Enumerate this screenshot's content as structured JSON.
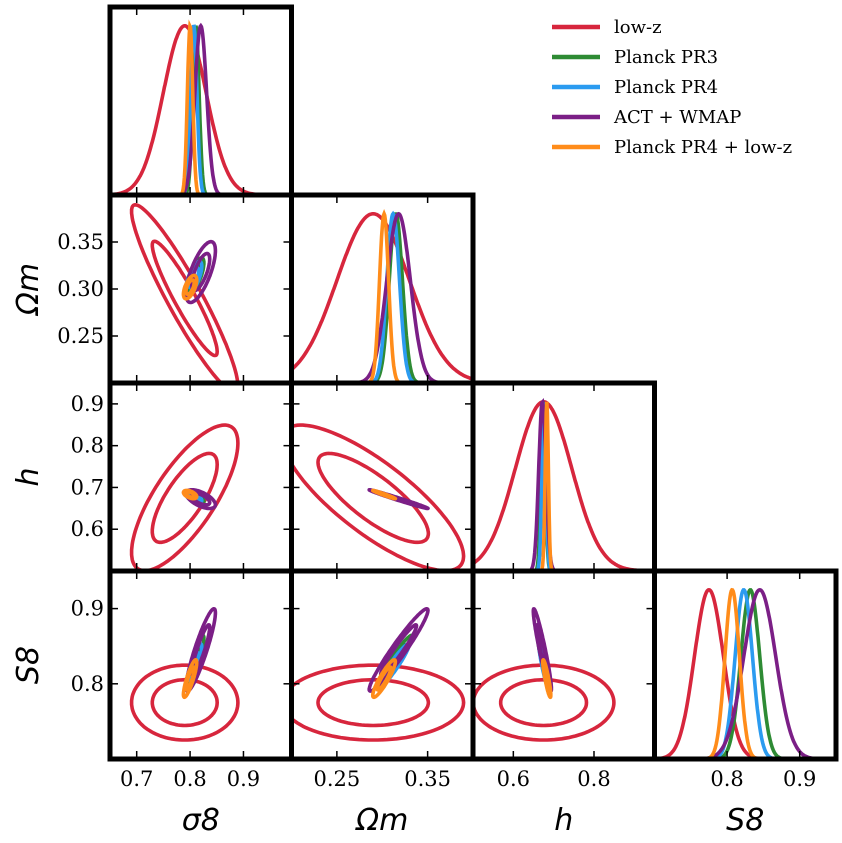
{
  "chart_data": {
    "type": "corner",
    "parameters": [
      {
        "key": "sigma8",
        "label": "σ8",
        "range": [
          0.65,
          0.99
        ],
        "ticks": [
          0.7,
          0.8,
          0.9
        ],
        "tick_labels": [
          "0.7",
          "0.8",
          "0.9"
        ]
      },
      {
        "key": "omega_m",
        "label": "Ωm",
        "range": [
          0.2,
          0.4
        ],
        "ticks": [
          0.25,
          0.3,
          0.35
        ],
        "tick_labels": [
          "0.25",
          "0.30",
          "0.35"
        ]
      },
      {
        "key": "h",
        "label": "h",
        "range": [
          0.5,
          0.95
        ],
        "ticks": [
          0.6,
          0.7,
          0.8,
          0.9
        ],
        "tick_labels": [
          "0.6",
          "0.7",
          "0.8",
          "0.9"
        ]
      },
      {
        "key": "S8",
        "label": "S8",
        "range": [
          0.7,
          0.95
        ],
        "ticks": [
          0.8,
          0.9
        ],
        "tick_labels": [
          "0.8",
          "0.9"
        ]
      }
    ],
    "x_axis_ticks": {
      "sigma8": {
        "ticks": [
          0.7,
          0.8,
          0.9
        ],
        "tick_labels": [
          "0.7",
          "0.8",
          "0.9"
        ]
      },
      "omega_m": {
        "ticks": [
          0.25,
          0.35
        ],
        "tick_labels": [
          "0.25",
          "0.35"
        ]
      },
      "h": {
        "ticks": [
          0.6,
          0.8
        ],
        "tick_labels": [
          "0.6",
          "0.8"
        ]
      },
      "S8": {
        "ticks": [
          0.8,
          0.9
        ],
        "tick_labels": [
          "0.8",
          "0.9"
        ]
      }
    },
    "legend": {
      "placement": "top-right"
    },
    "series": [
      {
        "name": "low-z",
        "color": "#d7263d",
        "mean": {
          "sigma8": 0.79,
          "omega_m": 0.29,
          "h": 0.675,
          "S8": 0.775
        },
        "sigma": {
          "sigma8": 0.04,
          "omega_m": 0.04,
          "h": 0.07,
          "S8": 0.02
        },
        "corr": {
          "sigma8_omega_m": -0.93,
          "sigma8_h": 0.75,
          "omega_m_h": -0.8,
          "sigma8_S8": 0.0,
          "omega_m_S8": 0.0,
          "h_S8": 0.0
        }
      },
      {
        "name": "Planck PR3",
        "color": "#2e8b34",
        "mean": {
          "sigma8": 0.811,
          "omega_m": 0.315,
          "h": 0.674,
          "S8": 0.832
        },
        "sigma": {
          "sigma8": 0.006,
          "omega_m": 0.0073,
          "h": 0.0054,
          "S8": 0.013
        },
        "corr": {
          "sigma8_omega_m": 0.7,
          "sigma8_h": -0.6,
          "omega_m_h": -0.99,
          "sigma8_S8": 0.88,
          "omega_m_S8": 0.95,
          "h_S8": -0.92
        }
      },
      {
        "name": "Planck PR4",
        "color": "#2b9bf0",
        "mean": {
          "sigma8": 0.807,
          "omega_m": 0.312,
          "h": 0.676,
          "S8": 0.823
        },
        "sigma": {
          "sigma8": 0.006,
          "omega_m": 0.007,
          "h": 0.005,
          "S8": 0.012
        },
        "corr": {
          "sigma8_omega_m": 0.7,
          "sigma8_h": -0.6,
          "omega_m_h": -0.99,
          "sigma8_S8": 0.88,
          "omega_m_S8": 0.95,
          "h_S8": -0.92
        }
      },
      {
        "name": "ACT + WMAP",
        "color": "#7b1f86",
        "mean": {
          "sigma8": 0.82,
          "omega_m": 0.318,
          "h": 0.672,
          "S8": 0.845
        },
        "sigma": {
          "sigma8": 0.011,
          "omega_m": 0.013,
          "h": 0.009,
          "S8": 0.022
        },
        "corr": {
          "sigma8_omega_m": 0.7,
          "sigma8_h": -0.6,
          "omega_m_h": -0.99,
          "sigma8_S8": 0.9,
          "omega_m_S8": 0.96,
          "h_S8": -0.94
        }
      },
      {
        "name": "Planck PR4 + low-z",
        "color": "#ff8c1a",
        "mean": {
          "sigma8": 0.8,
          "omega_m": 0.302,
          "h": 0.683,
          "S8": 0.807
        },
        "sigma": {
          "sigma8": 0.005,
          "omega_m": 0.005,
          "h": 0.004,
          "S8": 0.01
        },
        "corr": {
          "sigma8_omega_m": 0.6,
          "sigma8_h": -0.5,
          "omega_m_h": -0.98,
          "sigma8_S8": 0.85,
          "omega_m_S8": 0.9,
          "h_S8": -0.88
        }
      }
    ]
  }
}
